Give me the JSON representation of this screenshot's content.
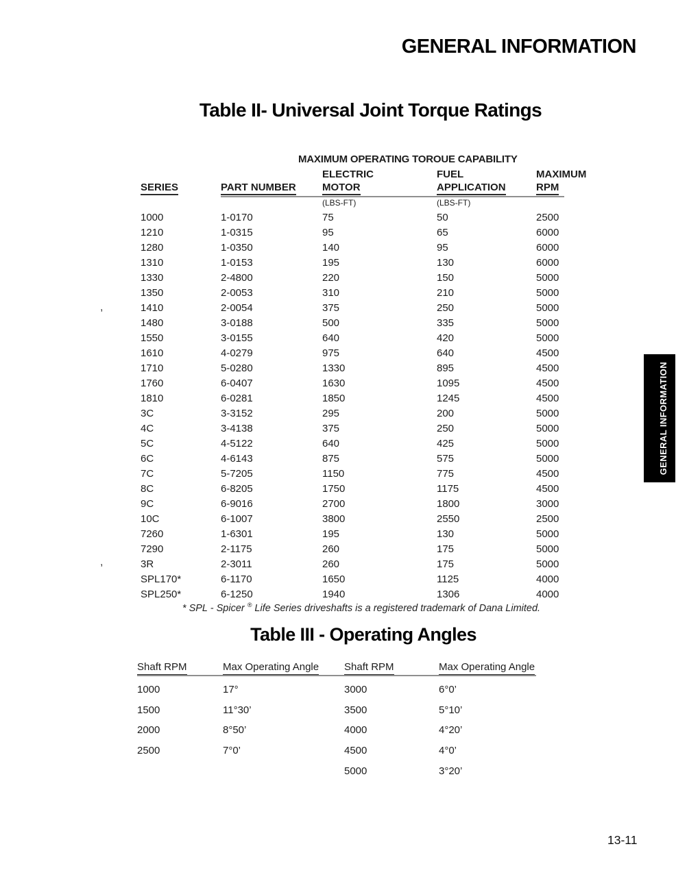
{
  "page": {
    "header_title": "GENERAL INFORMATION",
    "side_tab_label": "GENERAL INFORMATION",
    "page_number": "13-11",
    "colors": {
      "tab_bg": "#000000",
      "tab_text": "#ffffff",
      "rule_gray": "#8f8f8f",
      "text": "#1c1c1c"
    }
  },
  "table2": {
    "title": "Table II- Universal Joint Torque Ratings",
    "group_header": "MAXIMUM OPERATING TOROUE CAPABILITY",
    "columns": {
      "series": "SERIES",
      "part_number": "PART NUMBER",
      "electric_line1": "ELECTRIC",
      "electric_line2": "MOTOR",
      "fuel_line1": "FUEL",
      "fuel_line2": "APPLICATION",
      "max_line1": "MAXIMUM",
      "max_line2": "RPM",
      "units": "(LBS-FT)"
    },
    "rows": [
      [
        "1000",
        "1-0170",
        "75",
        "50",
        "2500"
      ],
      [
        "1210",
        "1-0315",
        "95",
        "65",
        "6000"
      ],
      [
        "1280",
        "1-0350",
        "140",
        "95",
        "6000"
      ],
      [
        "1310",
        "1-0153",
        "195",
        "130",
        "6000"
      ],
      [
        "1330",
        "2-4800",
        "220",
        "150",
        "5000"
      ],
      [
        "1350",
        "2-0053",
        "310",
        "210",
        "5000"
      ],
      [
        "1410",
        "2-0054",
        "375",
        "250",
        "5000"
      ],
      [
        "1480",
        "3-0188",
        "500",
        "335",
        "5000"
      ],
      [
        "1550",
        "3-0155",
        "640",
        "420",
        "5000"
      ],
      [
        "1610",
        "4-0279",
        "975",
        "640",
        "4500"
      ],
      [
        "1710",
        "5-0280",
        "1330",
        "895",
        "4500"
      ],
      [
        "1760",
        "6-0407",
        "1630",
        "1095",
        "4500"
      ],
      [
        "1810",
        "6-0281",
        "1850",
        "1245",
        "4500"
      ],
      [
        "3C",
        "3-3152",
        "295",
        "200",
        "5000"
      ],
      [
        "4C",
        "3-4138",
        "375",
        "250",
        "5000"
      ],
      [
        "5C",
        "4-5122",
        "640",
        "425",
        "5000"
      ],
      [
        "6C",
        "4-6143",
        "875",
        "575",
        "5000"
      ],
      [
        "7C",
        "5-7205",
        "1150",
        "775",
        "4500"
      ],
      [
        "8C",
        "6-8205",
        "1750",
        "1175",
        "4500"
      ],
      [
        "9C",
        "6-9016",
        "2700",
        "1800",
        "3000"
      ],
      [
        "10C",
        "6-1007",
        "3800",
        "2550",
        "2500"
      ],
      [
        "7260",
        "1-6301",
        "195",
        "130",
        "5000"
      ],
      [
        "7290",
        "2-1175",
        "260",
        "175",
        "5000"
      ],
      [
        "3R",
        "2-3011",
        "260",
        "175",
        "5000"
      ],
      [
        "SPL170*",
        "6-1170",
        "1650",
        "1125",
        "4000"
      ],
      [
        "SPL250*",
        "6-1250",
        "1940",
        "1306",
        "4000"
      ]
    ],
    "footnote": {
      "prefix": "* SPL - Spicer ",
      "reg": "®",
      "suffix": " Life Series driveshafts is a registered trademark of Dana Limited."
    },
    "margin_marks": [
      ",",
      ","
    ]
  },
  "table3": {
    "title": "Table III - Operating Angles",
    "columns": [
      "Shaft RPM",
      "Max Operating Angle",
      "Shaft RPM",
      "Max Operating Angle"
    ],
    "rows": [
      [
        "1000",
        "17°",
        "3000",
        "6°0’"
      ],
      [
        "1500",
        "11°30’",
        "3500",
        "5°10’"
      ],
      [
        "2000",
        "8°50’",
        "4000",
        "4°20’"
      ],
      [
        "2500",
        "7°0’",
        "4500",
        "4°0’"
      ],
      [
        "",
        "",
        "5000",
        "3°20’"
      ]
    ]
  }
}
